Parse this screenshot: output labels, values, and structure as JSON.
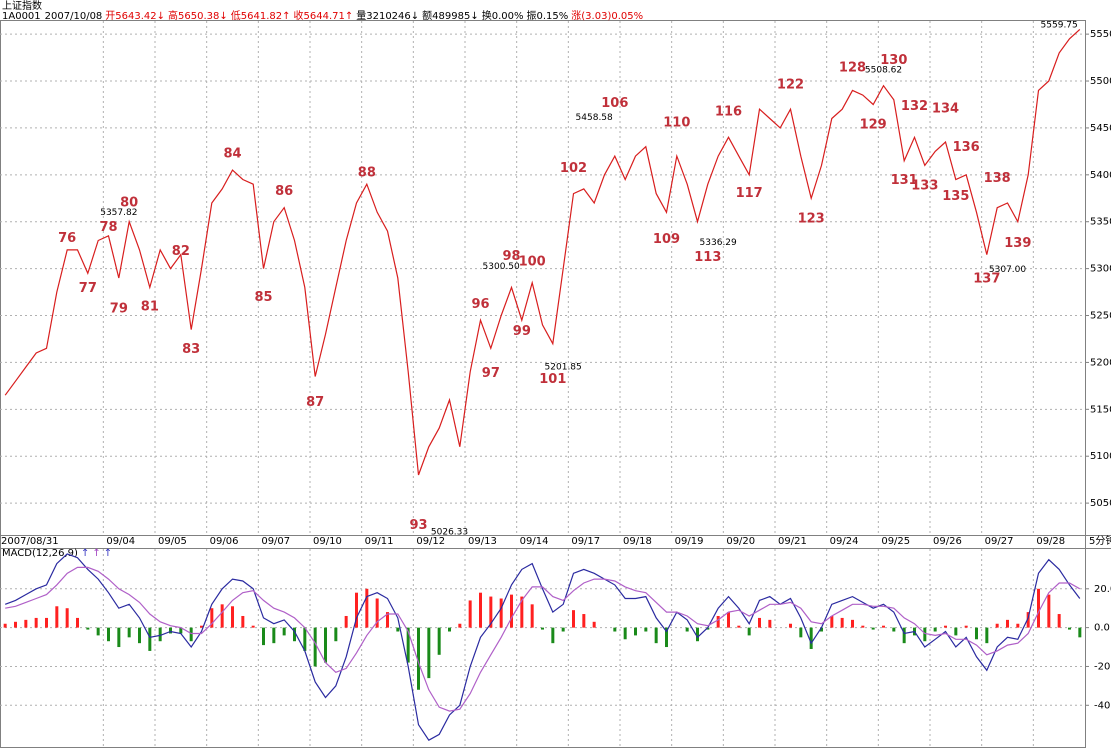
{
  "header": {
    "tab": "上证指数",
    "code": "1A0001",
    "date": "2007/10/08",
    "fields": [
      {
        "text": "开5643.42↓",
        "color": "#e00000"
      },
      {
        "text": "高5650.38↓",
        "color": "#e00000"
      },
      {
        "text": "低5641.82↑",
        "color": "#e00000"
      },
      {
        "text": "收5644.71↑",
        "color": "#e00000"
      },
      {
        "text": "量3210246↓",
        "color": "#000000"
      },
      {
        "text": "额489985↓",
        "color": "#000000"
      },
      {
        "text": "换0.00%",
        "color": "#000000"
      },
      {
        "text": "振0.15%",
        "color": "#000000"
      },
      {
        "text": "涨(3.03)0.05%",
        "color": "#e00000"
      }
    ]
  },
  "chart_data": [
    {
      "type": "line",
      "categories": [
        "2007/08/31",
        null,
        null,
        null,
        null,
        null,
        null,
        null,
        null,
        null,
        "09/04",
        null,
        null,
        null,
        null,
        "09/05",
        null,
        null,
        null,
        null,
        "09/06",
        null,
        null,
        null,
        null,
        "09/07",
        null,
        null,
        null,
        null,
        "09/10",
        null,
        null,
        null,
        null,
        "09/11",
        null,
        null,
        null,
        null,
        "09/12",
        null,
        null,
        null,
        null,
        "09/13",
        null,
        null,
        null,
        null,
        "09/14",
        null,
        null,
        null,
        null,
        "09/17",
        null,
        null,
        null,
        null,
        "09/18",
        null,
        null,
        null,
        null,
        "09/19",
        null,
        null,
        null,
        null,
        "09/20",
        null,
        null,
        null,
        null,
        "09/21",
        null,
        null,
        null,
        null,
        "09/24",
        null,
        null,
        null,
        null,
        "09/25",
        null,
        null,
        null,
        null,
        "09/26",
        null,
        null,
        null,
        null,
        "09/27",
        null,
        null,
        null,
        null,
        "09/28",
        null,
        null,
        null,
        null
      ],
      "series": [
        {
          "color": "#d81e1e",
          "values": [
            5165,
            5180,
            5195,
            5210,
            5215,
            5275,
            5320,
            5320,
            5295,
            5330,
            5335,
            5290,
            5350,
            5320,
            5280,
            5320,
            5300,
            5315,
            5235,
            5300,
            5370,
            5385,
            5405,
            5395,
            5390,
            5300,
            5350,
            5365,
            5330,
            5280,
            5185,
            5230,
            5280,
            5330,
            5370,
            5390,
            5360,
            5340,
            5290,
            5190,
            5080,
            5110,
            5130,
            5160,
            5110,
            5190,
            5245,
            5215,
            5250,
            5280,
            5245,
            5285,
            5240,
            5220,
            5300,
            5380,
            5385,
            5370,
            5400,
            5420,
            5395,
            5420,
            5430,
            5380,
            5360,
            5420,
            5390,
            5350,
            5390,
            5420,
            5440,
            5420,
            5400,
            5470,
            5460,
            5450,
            5470,
            5420,
            5375,
            5410,
            5460,
            5470,
            5490,
            5485,
            5475,
            5495,
            5480,
            5415,
            5440,
            5410,
            5425,
            5435,
            5395,
            5400,
            5360,
            5315,
            5365,
            5370,
            5350,
            5400,
            5490,
            5500,
            5530,
            5545,
            5555
          ]
        }
      ],
      "ylim": [
        5016,
        5564
      ],
      "yticks": [
        5050,
        5100,
        5150,
        5200,
        5250,
        5300,
        5350,
        5400,
        5450,
        5500,
        5550
      ],
      "grid": true,
      "wave_labels": [
        {
          "text": "76",
          "x": 6,
          "y": 5332
        },
        {
          "text": "77",
          "x": 8,
          "y": 5279
        },
        {
          "text": "78",
          "x": 10,
          "y": 5344
        },
        {
          "text": "79",
          "x": 11,
          "y": 5257
        },
        {
          "text": "80",
          "x": 12,
          "y": 5370
        },
        {
          "text": "81",
          "x": 14,
          "y": 5259
        },
        {
          "text": "82",
          "x": 17,
          "y": 5318
        },
        {
          "text": "83",
          "x": 18,
          "y": 5214
        },
        {
          "text": "84",
          "x": 22,
          "y": 5422
        },
        {
          "text": "85",
          "x": 25,
          "y": 5269
        },
        {
          "text": "86",
          "x": 27,
          "y": 5382
        },
        {
          "text": "87",
          "x": 30,
          "y": 5157
        },
        {
          "text": "88",
          "x": 35,
          "y": 5402
        },
        {
          "text": "93",
          "x": 40,
          "y": 5026
        },
        {
          "text": "96",
          "x": 46,
          "y": 5262
        },
        {
          "text": "97",
          "x": 47,
          "y": 5188
        },
        {
          "text": "98",
          "x": 49,
          "y": 5313
        },
        {
          "text": "99",
          "x": 50,
          "y": 5233
        },
        {
          "text": "100",
          "x": 51,
          "y": 5307
        },
        {
          "text": "101",
          "x": 53,
          "y": 5182
        },
        {
          "text": "102",
          "x": 55,
          "y": 5407
        },
        {
          "text": "106",
          "x": 59,
          "y": 5476
        },
        {
          "text": "109",
          "x": 64,
          "y": 5331
        },
        {
          "text": "110",
          "x": 65,
          "y": 5455
        },
        {
          "text": "113",
          "x": 68,
          "y": 5312
        },
        {
          "text": "116",
          "x": 70,
          "y": 5467
        },
        {
          "text": "117",
          "x": 72,
          "y": 5380
        },
        {
          "text": "122",
          "x": 76,
          "y": 5496
        },
        {
          "text": "123",
          "x": 78,
          "y": 5353
        },
        {
          "text": "128",
          "x": 82,
          "y": 5514
        },
        {
          "text": "129",
          "x": 84,
          "y": 5453
        },
        {
          "text": "130",
          "x": 86,
          "y": 5522
        },
        {
          "text": "131",
          "x": 87,
          "y": 5394
        },
        {
          "text": "132",
          "x": 88,
          "y": 5473
        },
        {
          "text": "133",
          "x": 89,
          "y": 5388
        },
        {
          "text": "134",
          "x": 91,
          "y": 5470
        },
        {
          "text": "135",
          "x": 92,
          "y": 5377
        },
        {
          "text": "136",
          "x": 93,
          "y": 5429
        },
        {
          "text": "137",
          "x": 95,
          "y": 5289
        },
        {
          "text": "138",
          "x": 96,
          "y": 5396
        },
        {
          "text": "139",
          "x": 98,
          "y": 5327
        }
      ],
      "price_labels": [
        {
          "text": "5357.82",
          "x": 11,
          "y": 5360
        },
        {
          "text": "5300.50",
          "x": 48,
          "y": 5302
        },
        {
          "text": "5026.33",
          "x": 43,
          "y": 5019
        },
        {
          "text": "5201.85",
          "x": 54,
          "y": 5195
        },
        {
          "text": "5458.58",
          "x": 57,
          "y": 5461
        },
        {
          "text": "5336.29",
          "x": 69,
          "y": 5328
        },
        {
          "text": "5508.62",
          "x": 85,
          "y": 5512
        },
        {
          "text": "5307.00",
          "x": 97,
          "y": 5299
        },
        {
          "text": "5559.75",
          "x": 102,
          "y": 5560
        }
      ]
    },
    {
      "type": "macd",
      "title": "MACD(12,26,9)",
      "period": "5分钟",
      "arrows": [
        {
          "text": "↑",
          "color": "#3030c0"
        },
        {
          "text": "↑",
          "color": "#a040c0"
        },
        {
          "text": "↑",
          "color": "#3030c0"
        }
      ],
      "ylim": [
        -62,
        40.5
      ],
      "yticks": [
        {
          "value": 20,
          "label": "20.0"
        },
        {
          "value": 0,
          "label": "0.0"
        },
        {
          "value": -20,
          "label": "-20.0"
        },
        {
          "value": -40,
          "label": "-40.0"
        }
      ],
      "grid": true,
      "histogram": {
        "up_color": "#ff2020",
        "down_color": "#1a8a1a",
        "values": [
          2,
          3,
          4,
          5,
          5,
          11,
          10,
          5,
          -1,
          -4,
          -7,
          -10,
          -5,
          -8,
          -12,
          -7,
          -3,
          -3,
          -7,
          1,
          10,
          12,
          11,
          6,
          1,
          -9,
          -8,
          -4,
          -7,
          -12,
          -20,
          -18,
          -7,
          6,
          18,
          20,
          15,
          8,
          -2,
          -18,
          -32,
          -26,
          -14,
          -2,
          2,
          14,
          18,
          16,
          15,
          17,
          16,
          12,
          -1,
          -8,
          -2,
          9,
          7,
          3,
          0,
          -2,
          -6,
          -4,
          -2,
          -8,
          -10,
          0,
          -2,
          -7,
          -1,
          6,
          8,
          1,
          -4,
          5,
          4,
          0,
          2,
          -5,
          -11,
          -2,
          6,
          5,
          4,
          1,
          -1,
          1,
          -2,
          -8,
          -4,
          -7,
          -2,
          1,
          -4,
          1,
          -6,
          -8,
          2,
          4,
          2,
          8,
          20,
          17,
          7,
          -1,
          -5
        ]
      },
      "series": [
        {
          "color": "#2a2aa0",
          "values": [
            12,
            14,
            17,
            20,
            22,
            33,
            38,
            36,
            30,
            25,
            18,
            10,
            12,
            5,
            -5,
            -4,
            -2,
            -3,
            -10,
            -2,
            12,
            20,
            25,
            24,
            20,
            5,
            2,
            4,
            -2,
            -12,
            -28,
            -36,
            -30,
            -15,
            5,
            16,
            18,
            15,
            5,
            -20,
            -50,
            -58,
            -55,
            -45,
            -40,
            -20,
            -5,
            2,
            10,
            22,
            30,
            33,
            20,
            8,
            12,
            28,
            30,
            28,
            25,
            22,
            15,
            15,
            16,
            5,
            -2,
            8,
            4,
            -5,
            0,
            10,
            16,
            10,
            2,
            14,
            16,
            12,
            15,
            5,
            -8,
            0,
            12,
            14,
            16,
            13,
            10,
            12,
            8,
            -3,
            -2,
            -10,
            -6,
            -2,
            -10,
            -5,
            -15,
            -22,
            -10,
            -5,
            -6,
            5,
            28,
            35,
            30,
            22,
            15
          ]
        },
        {
          "color": "#b060c8",
          "values": [
            10,
            11,
            13,
            15,
            17,
            22,
            28,
            31,
            31,
            29,
            25,
            20,
            17,
            13,
            7,
            3,
            1,
            0,
            -3,
            -3,
            2,
            8,
            14,
            18,
            19,
            14,
            10,
            8,
            5,
            0,
            -8,
            -18,
            -23,
            -21,
            -13,
            -4,
            3,
            7,
            7,
            -2,
            -18,
            -32,
            -41,
            -43,
            -42,
            -34,
            -23,
            -14,
            -5,
            5,
            14,
            21,
            21,
            16,
            14,
            19,
            23,
            25,
            25,
            24,
            21,
            19,
            18,
            13,
            8,
            8,
            6,
            2,
            1,
            4,
            8,
            9,
            6,
            9,
            12,
            12,
            13,
            10,
            3,
            2,
            6,
            9,
            12,
            12,
            11,
            11,
            10,
            5,
            2,
            -3,
            -4,
            -3,
            -6,
            -6,
            -9,
            -14,
            -12,
            -9,
            -8,
            -3,
            8,
            18,
            23,
            23,
            20
          ]
        }
      ]
    }
  ]
}
